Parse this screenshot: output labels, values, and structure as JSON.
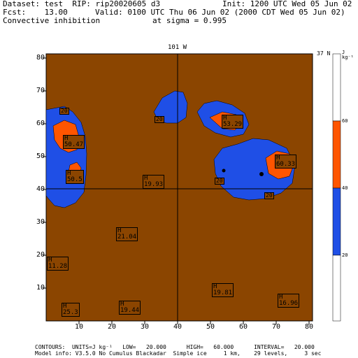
{
  "header": {
    "line1_left": "Dataset: test  RIP: rip20020605 d3",
    "line1_right": "Init: 1200 UTC Wed 05 Jun 02",
    "line2_left": "Fcst:    13.00",
    "line2_right": "Valid: 0100 UTC Thu 06 Jun 02 (2000 CDT Wed 05 Jun 02)",
    "line3_left": "Convective inhibition",
    "line3_right": "at sigma = 0.995"
  },
  "plot": {
    "top_label": "101 W",
    "right_label": "37 N",
    "colors": {
      "background": "#8B4500",
      "blue": "#1F4FE6",
      "orange": "#FF5500"
    }
  },
  "colorbar": {
    "units_label": "J kg⁻¹",
    "ticks": [
      "60",
      "40",
      "20"
    ],
    "colors": [
      "#ffffff",
      "#FF5500",
      "#1F4FE6",
      "#ffffff"
    ]
  },
  "chart_data": {
    "type": "map",
    "xlim": [
      0,
      81
    ],
    "ylim": [
      0,
      82
    ],
    "xticks": [
      "10",
      "20",
      "30",
      "40",
      "50",
      "60",
      "70",
      "80"
    ],
    "yticks": [
      "10",
      "20",
      "30",
      "40",
      "50",
      "60",
      "70",
      "80"
    ],
    "cross_lines": {
      "x": 40,
      "y": 41
    },
    "maxima": [
      {
        "label": "H",
        "value": "50.47"
      },
      {
        "label": "H",
        "value": "50.5"
      },
      {
        "label": "H",
        "value": "53.29"
      },
      {
        "label": "H",
        "value": "60.33"
      },
      {
        "label": "H",
        "value": "19.93"
      },
      {
        "label": "H",
        "value": "21.04"
      },
      {
        "label": "H",
        "value": "11.28"
      },
      {
        "label": "H",
        "value": "19.81"
      },
      {
        "label": "H",
        "value": "16.96"
      },
      {
        "label": "H",
        "value": "25.3"
      },
      {
        "label": "H",
        "value": "19.44"
      }
    ],
    "contour_labels": [
      "20",
      "20",
      "20",
      "20"
    ]
  },
  "footer": {
    "line1": "CONTOURS:  UNITS=J kg⁻¹   LOW=   20.000      HIGH=   60.000      INTERVAL=   20.000",
    "line2": "Model info: V3.5.0 No Cumulus Blackadar  Simple ice     1 km,    29 levels,     3 sec"
  }
}
